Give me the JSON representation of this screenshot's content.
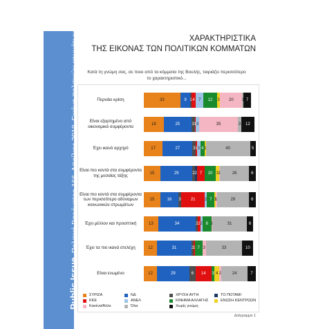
{
  "side_label": {
    "brand": "Public Issue",
    "text": "Πολιτικό Βαρόμετρο 166, Απρίλιος 2018. Εικόνα πολιτικών κομμάτων"
  },
  "footer": "Διάγραμμα 1",
  "chart_data": {
    "type": "bar",
    "orientation": "horizontal",
    "stacked": true,
    "title": [
      "ΧΑΡΑΚΤΗΡΙΣΤΙΚΑ",
      "ΤΗΣ ΕΙΚΟΝΑΣ ΤΩΝ ΠΟΛΙΤΙΚΩΝ ΚΟΜΜΑΤΩΝ"
    ],
    "subtitle": [
      "Κατά τη γνώμη σας, σε ποιο από τα κόμματα της Βουλής, ταιριάζει περισσότερο",
      "το χαρακτηριστικό..."
    ],
    "categories": [
      "Περνάει κρίση",
      "Είναι εξαρτημένο από οικονομικά συμφέροντα",
      "Έχει ικανό αρχηγό",
      "Είναι πιο κοντά στα συμφέροντα της μεσαίας τάξης",
      "Είναι πιο κοντά στα συμφέροντα των περισσότερο αδύναμων κοινωνικών στρωμάτων",
      "Έχει μέλλον και προοπτική",
      "Έχει τα πιο ικανά στελέχη",
      "Είναι ενωμένο"
    ],
    "series": [
      {
        "name": "ΣΥΡΙΖΑ",
        "color": "#e8821a",
        "values": [
          33,
          18,
          17,
          15,
          15,
          13,
          12,
          12
        ]
      },
      {
        "name": "ΝΔ",
        "color": "#1f62c0",
        "values": [
          9,
          25,
          27,
          29,
          16,
          34,
          31,
          29
        ]
      },
      {
        "name": "ΧΡΥΣΗ ΑΥΓΗ",
        "color": "#4d4d4d",
        "values": [
          1,
          3,
          3,
          2,
          3,
          2,
          2,
          6
        ]
      },
      {
        "name": "ΤΟ ΠΟΤΑΜΙ",
        "color": "#1f3864",
        "values": [
          null,
          null,
          null,
          2,
          null,
          null,
          null,
          null
        ]
      },
      {
        "name": "ΚΚΕ",
        "color": "#e01010",
        "values": [
          4,
          1,
          1,
          7,
          21,
          2,
          1,
          14
        ]
      },
      {
        "name": "ΑΝΕΛ",
        "color": "#9dc3e6",
        "values": [
          7,
          3,
          3,
          null,
          2,
          2,
          null,
          null
        ]
      },
      {
        "name": "ΚΙΝΗΜΑ ΑΛΛΑΓΗΣ",
        "color": "#1a8a2e",
        "values": [
          12,
          null,
          4,
          10,
          7,
          8,
          7,
          3
        ]
      },
      {
        "name": "ΕΝΩΣΗ ΚΕΝΤΡΩΩΝ",
        "color": "#f0d020",
        "values": [
          3,
          null,
          1,
          3,
          1,
          null,
          null,
          4
        ]
      },
      {
        "name": "Κανένα/Άλλο",
        "color": "#f4b6c2",
        "values": [
          20,
          35,
          null,
          1,
          1,
          1,
          3,
          2
        ]
      },
      {
        "name": "Όλα",
        "color": "#b3b3b3",
        "values": [
          1,
          3,
          40,
          26,
          29,
          31,
          33,
          24
        ]
      },
      {
        "name": "Χωρίς γνώμη",
        "color": "#111111",
        "values": [
          7,
          12,
          5,
          6,
          6,
          6,
          10,
          7
        ]
      }
    ]
  }
}
